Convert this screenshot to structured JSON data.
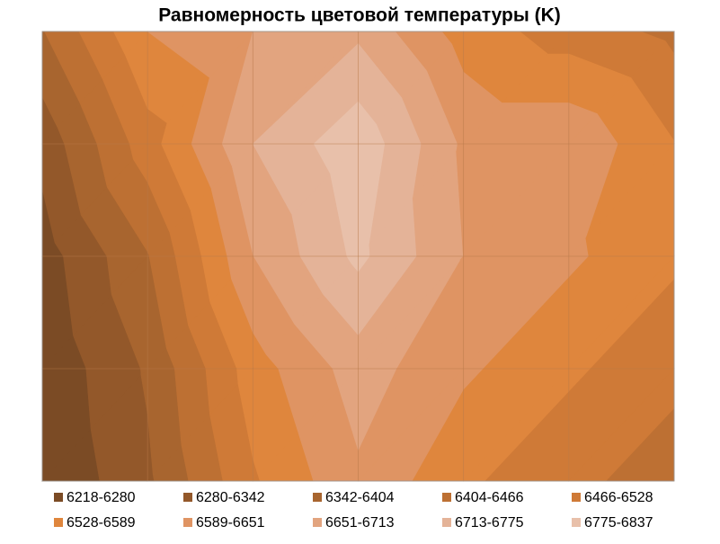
{
  "chart_data": {
    "type": "contour",
    "title": "Равномерность цветовой температуры (K)",
    "z": [
      [
        6400,
        6589,
        6651,
        6700,
        6560,
        6500,
        6450
      ],
      [
        6300,
        6500,
        6713,
        6820,
        6640,
        6640,
        6530
      ],
      [
        6250,
        6400,
        6650,
        6790,
        6650,
        6600,
        6540
      ],
      [
        6230,
        6350,
        6560,
        6680,
        6600,
        6540,
        6480
      ],
      [
        6220,
        6330,
        6520,
        6640,
        6540,
        6480,
        6440
      ]
    ],
    "levels": [
      6218,
      6280,
      6342,
      6404,
      6466,
      6528,
      6589,
      6651,
      6713,
      6775,
      6837
    ],
    "series": [
      {
        "name": "6218-6280",
        "color": "#7b4b25"
      },
      {
        "name": "6280-6342",
        "color": "#93582a"
      },
      {
        "name": "6342-6404",
        "color": "#a8652f"
      },
      {
        "name": "6404-6466",
        "color": "#bd7033"
      },
      {
        "name": "6466-6528",
        "color": "#cf7a37"
      },
      {
        "name": "6528-6589",
        "color": "#df863d"
      },
      {
        "name": "6589-6651",
        "color": "#df9463"
      },
      {
        "name": "6651-6713",
        "color": "#e2a47f"
      },
      {
        "name": "6713-6775",
        "color": "#e4b398"
      },
      {
        "name": "6775-6837",
        "color": "#e8c0aa"
      }
    ],
    "grid": true
  }
}
